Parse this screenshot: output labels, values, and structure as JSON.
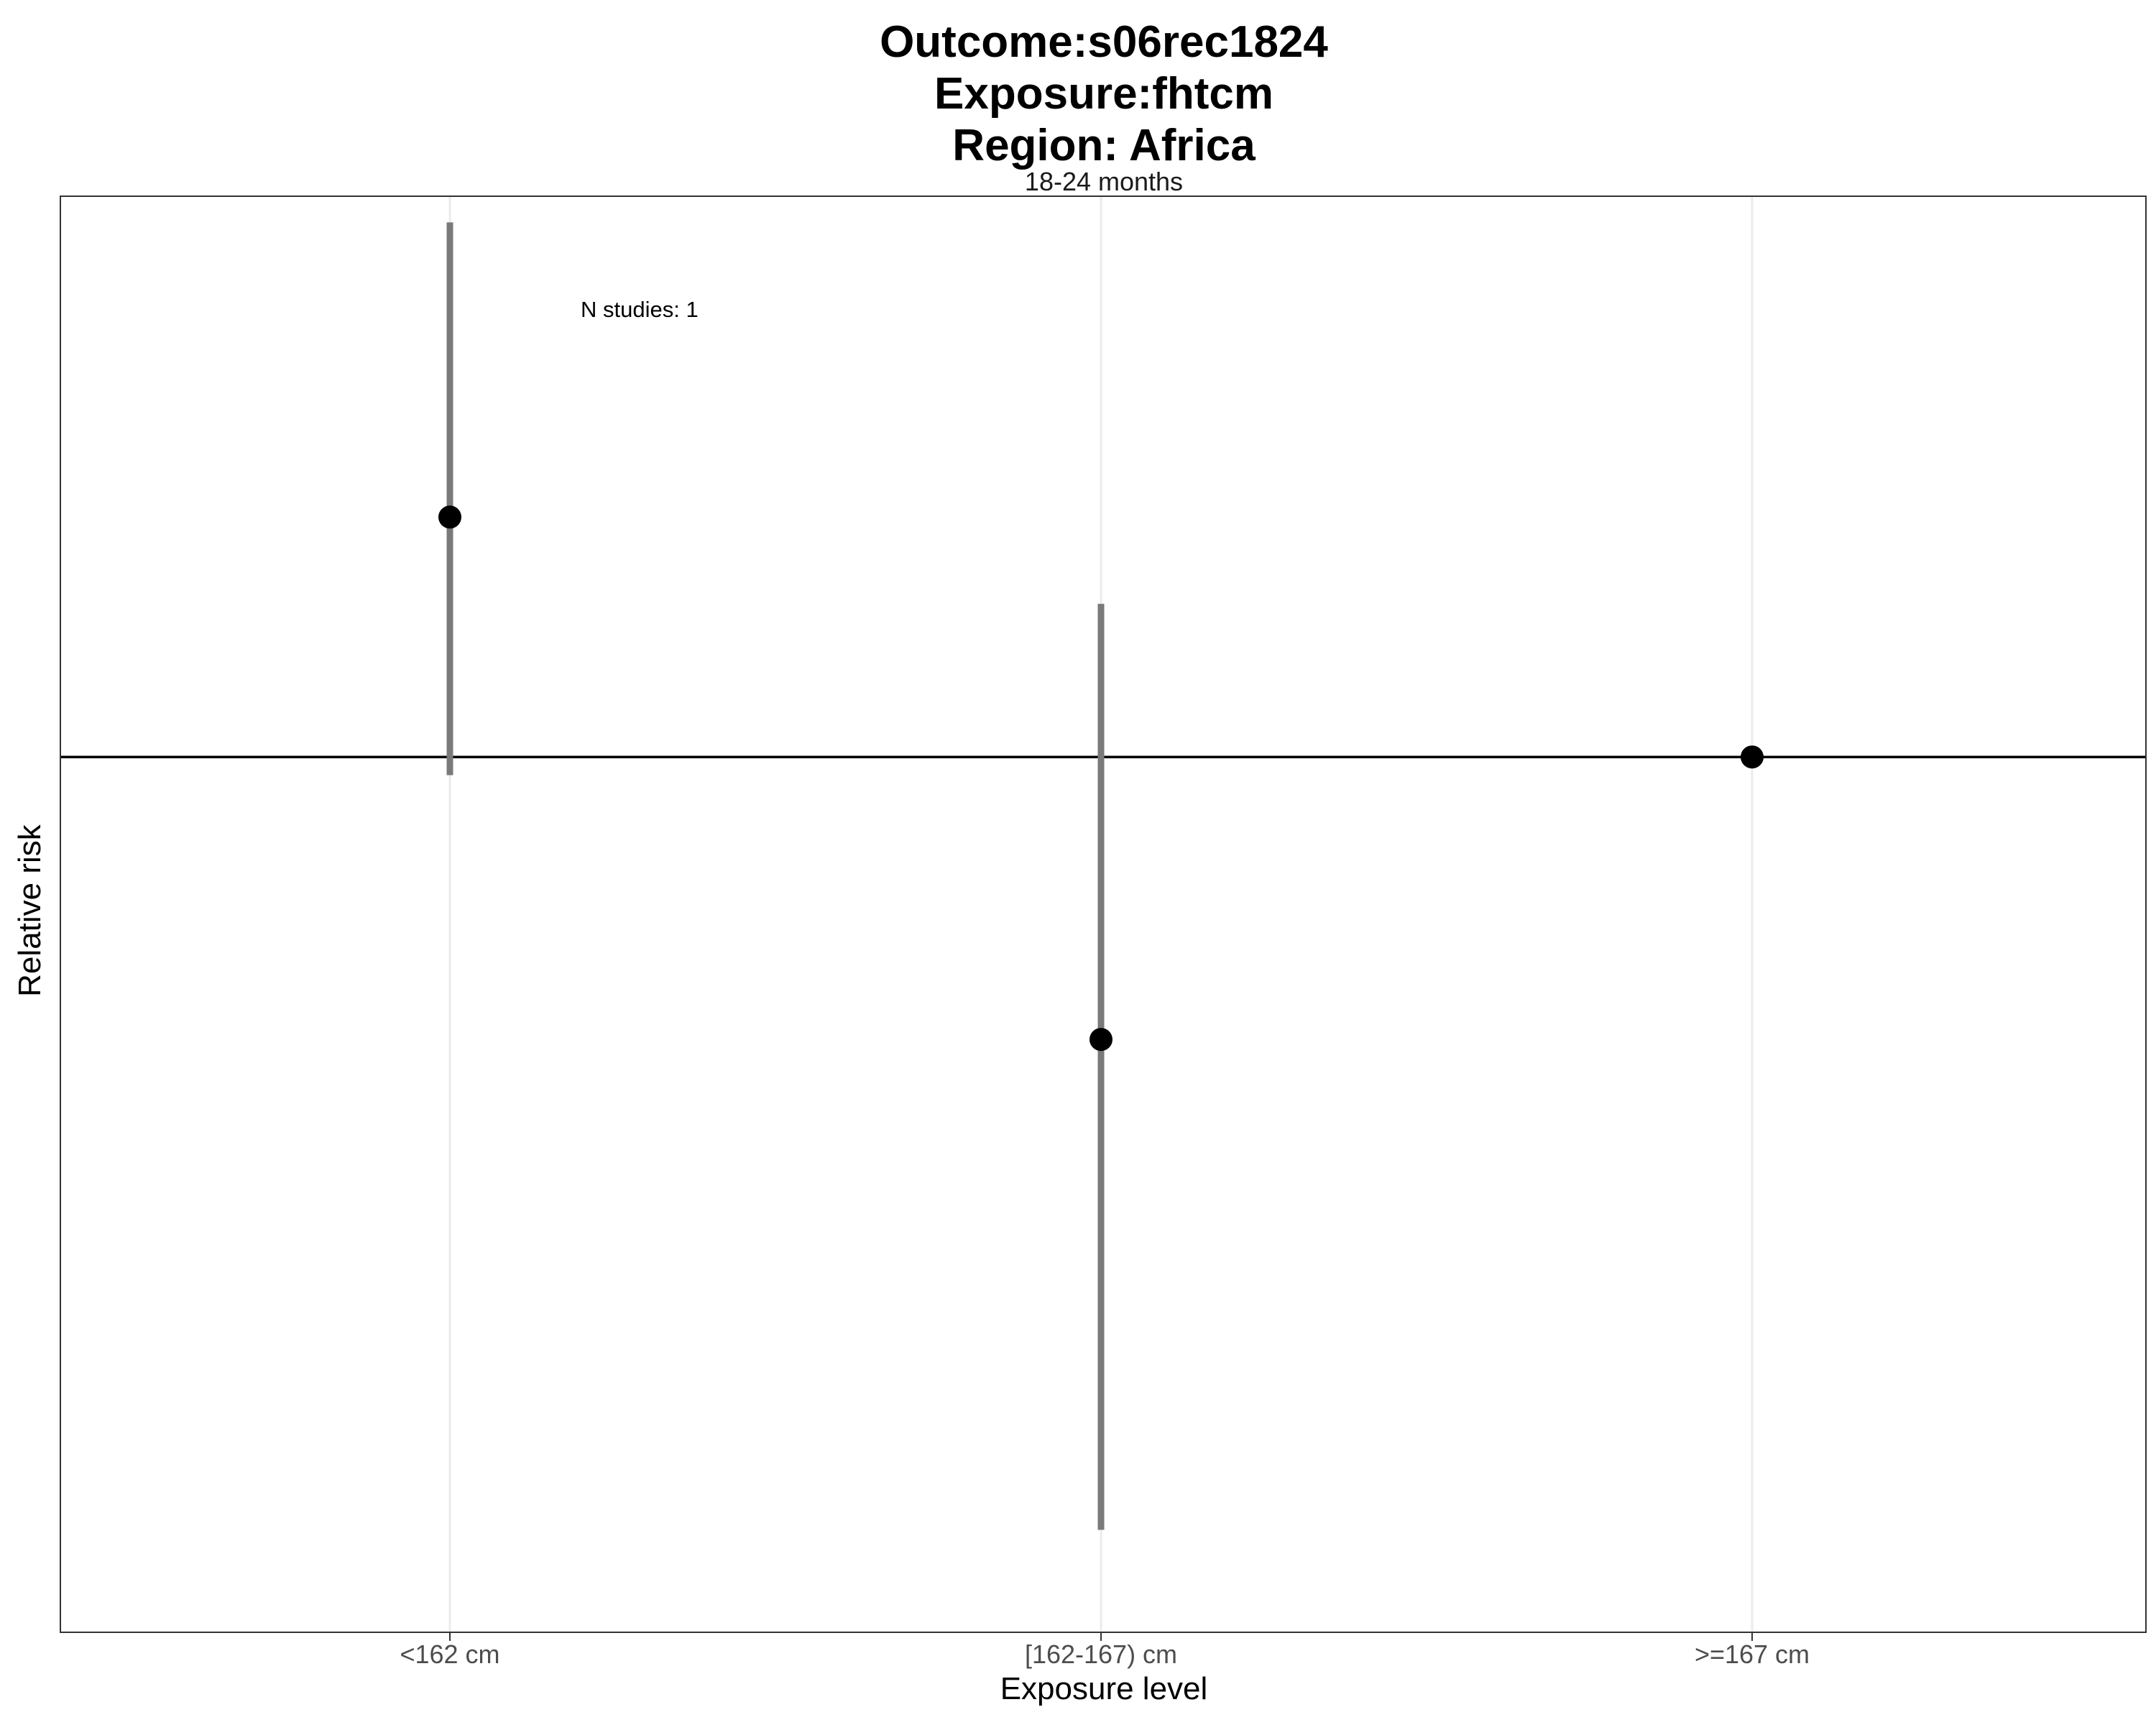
{
  "chart_data": {
    "type": "scatter",
    "title": [
      "Outcome:s06rec1824",
      "Exposure:fhtcm",
      "Region: Africa"
    ],
    "facet_label": "18-24 months",
    "xlabel": "Exposure level",
    "ylabel": "Relative risk",
    "categories": [
      "<162 cm",
      "[162-167) cm",
      ">=167 cm"
    ],
    "points": [
      {
        "category": "<162 cm",
        "estimate": 1.6,
        "ci_lower": 0.965,
        "ci_upper": 2.85
      },
      {
        "category": "[162-167) cm",
        "estimate": 0.575,
        "ci_lower": 0.22,
        "ci_upper": 1.35
      },
      {
        "category": ">=167 cm",
        "estimate": 1.0
      }
    ],
    "reference_line": 1,
    "y_axis_ticks_shown": false,
    "annotation": "N studies: 1",
    "grid": "vertical"
  }
}
